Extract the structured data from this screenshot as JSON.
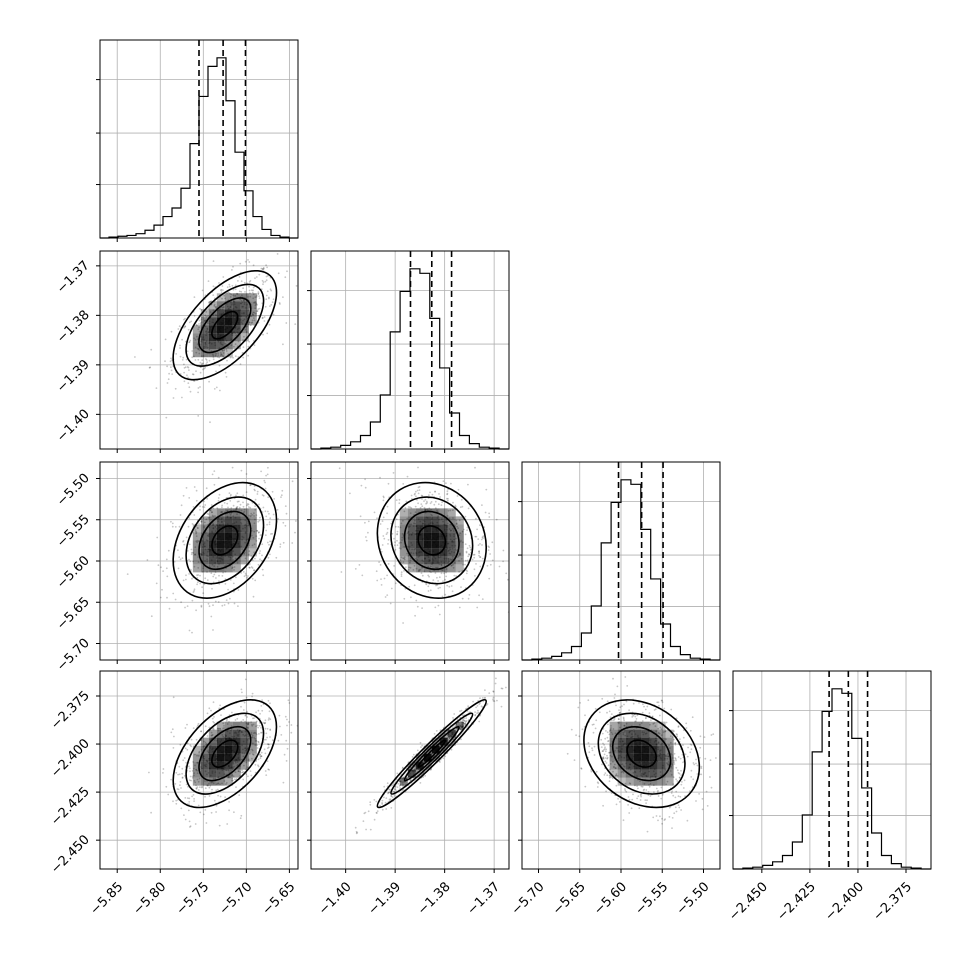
{
  "chart_data": {
    "type": "corner",
    "grid": true,
    "parameters": 4,
    "hist1d": [
      {
        "param": 0,
        "range": [
          -5.87,
          -5.64
        ],
        "quantiles": [
          -5.755,
          -5.727,
          -5.701
        ],
        "ticks": [
          -5.85,
          -5.8,
          -5.75,
          -5.7,
          -5.65
        ],
        "tick_labels": [
          "−5.85",
          "−5.80",
          "−5.75",
          "−5.70",
          "−5.65"
        ],
        "counts": [
          0,
          1,
          2,
          3,
          5,
          9,
          15,
          25,
          35,
          58,
          110,
          165,
          200,
          210,
          160,
          100,
          55,
          25,
          10,
          3,
          1,
          0
        ]
      },
      {
        "param": 1,
        "range": [
          -1.407,
          -1.367
        ],
        "quantiles": [
          -1.3869,
          -1.3826,
          -1.3786
        ],
        "ticks": [
          -1.4,
          -1.39,
          -1.38,
          -1.37
        ],
        "tick_labels": [
          "−1.40",
          "−1.39",
          "−1.38",
          "−1.37"
        ],
        "counts": [
          0,
          1,
          2,
          4,
          8,
          15,
          30,
          60,
          130,
          175,
          200,
          195,
          145,
          90,
          40,
          15,
          6,
          2,
          1,
          0
        ]
      },
      {
        "param": 2,
        "range": [
          -5.72,
          -5.48
        ],
        "quantiles": [
          -5.603,
          -5.575,
          -5.549
        ],
        "ticks": [
          -5.7,
          -5.65,
          -5.6,
          -5.55,
          -5.5
        ],
        "tick_labels": [
          "−5.70",
          "−5.65",
          "−5.60",
          "−5.55",
          "−5.50"
        ],
        "counts": [
          0,
          1,
          2,
          4,
          8,
          15,
          30,
          60,
          130,
          175,
          200,
          195,
          145,
          90,
          40,
          15,
          6,
          2,
          1,
          0
        ]
      },
      {
        "param": 3,
        "range": [
          -2.465,
          -2.362
        ],
        "quantiles": [
          -2.415,
          -2.405,
          -2.395
        ],
        "ticks": [
          -2.45,
          -2.425,
          -2.4,
          -2.375
        ],
        "tick_labels": [
          "−2.450",
          "−2.425",
          "−2.400",
          "−2.375"
        ],
        "counts": [
          0,
          1,
          2,
          4,
          8,
          15,
          30,
          60,
          130,
          175,
          200,
          195,
          145,
          90,
          40,
          15,
          6,
          2,
          1,
          0
        ]
      }
    ],
    "hist2d": [
      {
        "x": 0,
        "y": 1,
        "center": [
          -5.725,
          -1.382
        ],
        "sigma": [
          0.03,
          0.0055
        ],
        "rho": 0.6
      },
      {
        "x": 0,
        "y": 2,
        "center": [
          -5.725,
          -5.575
        ],
        "sigma": [
          0.03,
          0.035
        ],
        "rho": 0.35
      },
      {
        "x": 1,
        "y": 2,
        "center": [
          -1.3826,
          -5.575
        ],
        "sigma": [
          0.0055,
          0.035
        ],
        "rho": -0.12
      },
      {
        "x": 0,
        "y": 3,
        "center": [
          -5.725,
          -2.405
        ],
        "sigma": [
          0.03,
          0.014
        ],
        "rho": 0.5
      },
      {
        "x": 1,
        "y": 3,
        "center": [
          -1.3826,
          -2.405
        ],
        "sigma": [
          0.0055,
          0.014
        ],
        "rho": 0.97
      },
      {
        "x": 2,
        "y": 3,
        "center": [
          -5.575,
          -2.405
        ],
        "sigma": [
          0.035,
          0.014
        ],
        "rho": -0.25
      }
    ]
  }
}
